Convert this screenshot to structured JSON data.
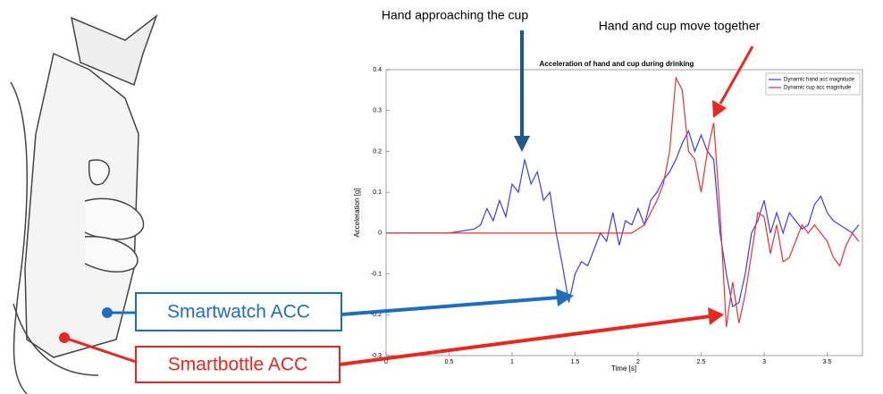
{
  "chart_data": {
    "type": "line",
    "title": "Acceleration of hand and cup during drinking",
    "x_label": "Time [s]",
    "y_label": "Acceleration [g]",
    "annotations": [
      "Hand approaching the cup",
      "Hand and cup move together",
      "Smartwatch ACC",
      "Smartbottle ACC"
    ],
    "x": [
      0,
      0.5,
      0.7,
      0.75,
      0.8,
      0.85,
      0.9,
      0.95,
      1.0,
      1.05,
      1.1,
      1.15,
      1.2,
      1.25,
      1.3,
      1.35,
      1.4,
      1.45,
      1.5,
      1.55,
      1.6,
      1.65,
      1.7,
      1.75,
      1.8,
      1.85,
      1.9,
      1.95,
      2.0,
      2.05,
      2.1,
      2.15,
      2.2,
      2.25,
      2.3,
      2.35,
      2.4,
      2.45,
      2.5,
      2.55,
      2.6,
      2.65,
      2.7,
      2.75,
      2.8,
      2.85,
      2.9,
      2.95,
      3.0,
      3.05,
      3.1,
      3.15,
      3.2,
      3.25,
      3.3,
      3.35,
      3.4,
      3.45,
      3.5,
      3.55,
      3.6,
      3.65,
      3.7,
      3.75
    ],
    "series": [
      {
        "name": "Dynamic hand acc magnitude",
        "color": "#3b3bf0",
        "values": [
          0,
          0,
          0.01,
          0.02,
          0.06,
          0.03,
          0.08,
          0.04,
          0.12,
          0.1,
          0.18,
          0.12,
          0.15,
          0.08,
          0.1,
          0.0,
          -0.08,
          -0.17,
          -0.1,
          -0.07,
          -0.08,
          -0.04,
          0.0,
          -0.02,
          0.05,
          -0.03,
          0.03,
          0.02,
          0.06,
          0.02,
          0.08,
          0.1,
          0.13,
          0.15,
          0.18,
          0.22,
          0.25,
          0.2,
          0.24,
          0.2,
          0.18,
          0.0,
          -0.1,
          -0.18,
          -0.17,
          -0.1,
          0.0,
          0.03,
          0.08,
          0.0,
          0.05,
          0.0,
          0.05,
          0.03,
          0.01,
          0.02,
          0.07,
          0.09,
          0.05,
          0.03,
          0.02,
          0.01,
          0.0,
          0.02
        ]
      },
      {
        "name": "Dynamic cup acc magnitude",
        "color": "#f03030",
        "values": [
          0,
          0,
          0,
          0,
          0,
          0,
          0,
          0,
          0,
          0,
          0,
          0,
          0,
          0,
          0,
          0,
          0,
          0,
          0,
          0,
          0,
          0,
          0,
          0,
          0,
          0,
          0,
          0,
          0.01,
          0.02,
          0.05,
          0.08,
          0.12,
          0.2,
          0.38,
          0.35,
          0.2,
          0.18,
          0.1,
          0.2,
          0.27,
          0.05,
          -0.23,
          -0.12,
          -0.22,
          -0.15,
          -0.05,
          0.05,
          0.04,
          -0.05,
          0.02,
          -0.07,
          -0.06,
          -0.02,
          0.02,
          0.0,
          0.02,
          0.0,
          -0.02,
          -0.06,
          -0.08,
          -0.03,
          0.0,
          -0.02
        ]
      }
    ],
    "xlim": [
      0,
      3.78
    ],
    "xticks": [
      0,
      0.5,
      1,
      1.5,
      2,
      2.5,
      3,
      3.5
    ],
    "ylim": [
      -0.3,
      0.4
    ],
    "yticks": [
      -0.3,
      -0.2,
      -0.1,
      0,
      0.1,
      0.2,
      0.3,
      0.4
    ],
    "legend": "top-right"
  }
}
